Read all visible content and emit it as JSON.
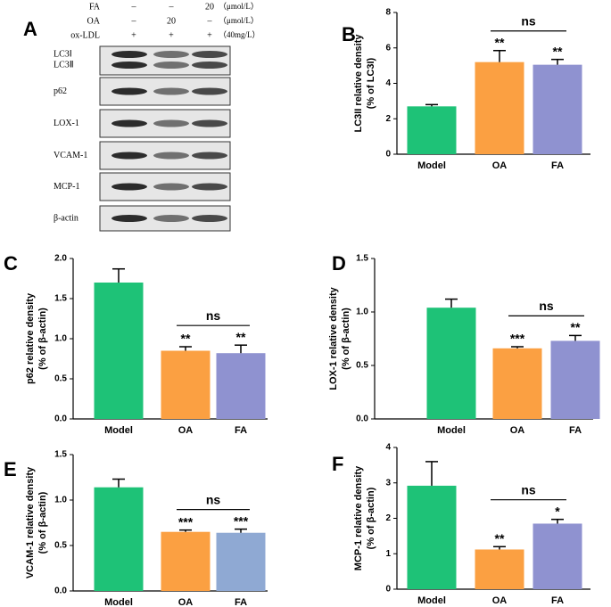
{
  "blot": {
    "panel": "A",
    "treatments": [
      {
        "name": "FA",
        "values": [
          "–",
          "–",
          "20"
        ],
        "unit": "（μmol/L）"
      },
      {
        "name": "OA",
        "values": [
          "–",
          "20",
          "–"
        ],
        "unit": "（μmol/L）"
      },
      {
        "name": "ox-LDL",
        "values": [
          "+",
          "+",
          "+"
        ],
        "unit": "（40mg/L）"
      }
    ],
    "bands": [
      "LC3Ⅰ",
      "LC3Ⅱ",
      "p62",
      "LOX-1",
      "VCAM-1",
      "MCP-1",
      "β-actin"
    ]
  },
  "chart_data": [
    {
      "type": "bar",
      "panel": "B",
      "ylabel": [
        "LC3II relative density",
        "(% of LC3I)"
      ],
      "categories": [
        "Model",
        "OA",
        "FA"
      ],
      "values": [
        2.7,
        5.2,
        5.05
      ],
      "errors": [
        0.1,
        0.65,
        0.3
      ],
      "colors": [
        "#1ec277",
        "#fba042",
        "#8f92d0"
      ],
      "significance": [
        null,
        "**",
        "**"
      ],
      "annotation": "ns",
      "ylim": [
        0,
        8
      ],
      "yticks": [
        0,
        2,
        4,
        6,
        8
      ]
    },
    {
      "type": "bar",
      "panel": "C",
      "ylabel": [
        "p62 relative density",
        "(% of β-actin)"
      ],
      "categories": [
        "Model",
        "OA",
        "FA"
      ],
      "values": [
        1.7,
        0.85,
        0.82
      ],
      "errors": [
        0.17,
        0.05,
        0.1
      ],
      "colors": [
        "#1ec277",
        "#fba042",
        "#8f92d0"
      ],
      "significance": [
        null,
        "**",
        "**"
      ],
      "annotation": "ns",
      "ylim": [
        0,
        2
      ],
      "yticks": [
        {
          "value": 0,
          "label": "0.0"
        },
        0.5,
        {
          "value": 1,
          "label": "1.0"
        },
        1.5,
        {
          "value": 2,
          "label": "2.0"
        }
      ]
    },
    {
      "type": "bar",
      "panel": "D",
      "ylabel": [
        "LOX-1 relative density",
        "(% of β-actin)"
      ],
      "categories": [
        "Model",
        "OA",
        "FA"
      ],
      "values": [
        1.04,
        0.66,
        0.73
      ],
      "errors": [
        0.08,
        0.015,
        0.05
      ],
      "colors": [
        "#1ec277",
        "#fba042",
        "#8f92d0"
      ],
      "significance": [
        null,
        "***",
        "**"
      ],
      "annotation": "ns",
      "ylim": [
        0,
        1.5
      ],
      "yticks": [
        {
          "value": 0,
          "label": "0.0"
        },
        0.5,
        {
          "value": 1,
          "label": "1.0"
        },
        1.5
      ]
    },
    {
      "type": "bar",
      "panel": "E",
      "ylabel": [
        "VCAM-1 relative density",
        "(% of β-actin)"
      ],
      "categories": [
        "Model",
        "OA",
        "FA"
      ],
      "values": [
        1.14,
        0.65,
        0.64
      ],
      "errors": [
        0.09,
        0.02,
        0.04
      ],
      "colors": [
        "#1ec277",
        "#fba042",
        "#8fa9d3"
      ],
      "significance": [
        null,
        "***",
        "***"
      ],
      "annotation": "ns",
      "ylim": [
        0,
        1.5
      ],
      "yticks": [
        {
          "value": 0,
          "label": "0.0"
        },
        0.5,
        {
          "value": 1,
          "label": "1.0"
        },
        1.5
      ]
    },
    {
      "type": "bar",
      "panel": "F",
      "ylabel": [
        "MCP-1 relative density",
        "(% of β-actin)"
      ],
      "categories": [
        "Model",
        "OA",
        "FA"
      ],
      "values": [
        2.92,
        1.12,
        1.85
      ],
      "errors": [
        0.68,
        0.08,
        0.12
      ],
      "colors": [
        "#1ec277",
        "#fba042",
        "#8f92d0"
      ],
      "significance": [
        null,
        "**",
        "*"
      ],
      "annotation": "ns",
      "ylim": [
        0,
        4
      ],
      "yticks": [
        0,
        1,
        2,
        3,
        4
      ]
    }
  ]
}
